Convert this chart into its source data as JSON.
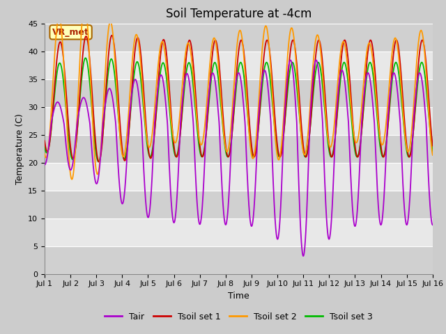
{
  "title": "Soil Temperature at -4cm",
  "xlabel": "Time",
  "ylabel": "Temperature (C)",
  "ylim": [
    0,
    45
  ],
  "yticks": [
    0,
    5,
    10,
    15,
    20,
    25,
    30,
    35,
    40,
    45
  ],
  "colors": {
    "Tair": "#aa00cc",
    "Tsoil1": "#cc0000",
    "Tsoil2": "#ff9900",
    "Tsoil3": "#00bb00"
  },
  "legend_labels": [
    "Tair",
    "Tsoil set 1",
    "Tsoil set 2",
    "Tsoil set 3"
  ],
  "annotation_text": "VR_met",
  "annotation_fg": "#aa2200",
  "annotation_bg": "#ffffbb",
  "annotation_edge": "#aa6600",
  "fig_bg_color": "#cccccc",
  "plot_bg_color": "#e8e8e8",
  "band_dark_color": "#d0d0d0",
  "band_light_color": "#e8e8e8",
  "grid_color": "#ffffff",
  "title_fontsize": 12,
  "axis_label_fontsize": 9,
  "tick_label_fontsize": 8,
  "legend_fontsize": 9,
  "line_width": 1.3
}
